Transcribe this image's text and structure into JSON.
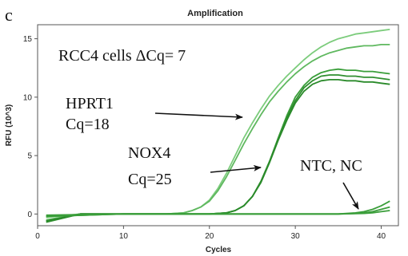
{
  "panel_label": "c",
  "chart_data": {
    "type": "line",
    "title": "Amplification",
    "xlabel": "Cycles",
    "ylabel": "RFU (10^3)",
    "xlim": [
      0,
      42
    ],
    "ylim": [
      -1,
      16.2
    ],
    "xticks": [
      0,
      10,
      20,
      30,
      40
    ],
    "yticks": [
      0,
      5,
      10,
      15
    ],
    "grid": false,
    "legend": "none",
    "series_color": "#3a9e3a",
    "series_colors": [
      "#7ccc7c",
      "#5fb85f",
      "#3a9e3a",
      "#2f8f2f",
      "#2a8a2a"
    ],
    "series": [
      {
        "group": "HPRT1",
        "x": [
          1,
          5,
          10,
          15,
          17,
          18,
          19,
          20,
          21,
          22,
          23,
          24,
          25,
          26,
          27,
          28,
          29,
          30,
          31,
          32,
          33,
          34,
          35,
          36,
          37,
          38,
          39,
          40,
          41
        ],
        "y": [
          -0.3,
          0.0,
          0.0,
          0.0,
          0.1,
          0.3,
          0.6,
          1.2,
          2.2,
          3.5,
          5.0,
          6.5,
          7.8,
          9.0,
          10.1,
          11.0,
          11.8,
          12.5,
          13.2,
          13.8,
          14.3,
          14.7,
          15.0,
          15.2,
          15.4,
          15.5,
          15.6,
          15.7,
          15.8
        ]
      },
      {
        "group": "HPRT1",
        "x": [
          1,
          5,
          10,
          15,
          17,
          18,
          19,
          20,
          21,
          22,
          23,
          24,
          25,
          26,
          27,
          28,
          29,
          30,
          31,
          32,
          33,
          34,
          35,
          36,
          37,
          38,
          39,
          40,
          41
        ],
        "y": [
          -0.5,
          0.0,
          0.0,
          0.0,
          0.1,
          0.3,
          0.6,
          1.1,
          2.0,
          3.2,
          4.6,
          6.0,
          7.3,
          8.5,
          9.6,
          10.5,
          11.3,
          12.0,
          12.6,
          13.1,
          13.5,
          13.8,
          14.0,
          14.2,
          14.3,
          14.4,
          14.4,
          14.5,
          14.5
        ]
      },
      {
        "group": "NOX4",
        "x": [
          1,
          5,
          10,
          15,
          20,
          22,
          23,
          24,
          25,
          26,
          27,
          28,
          29,
          30,
          31,
          32,
          33,
          34,
          35,
          36,
          37,
          38,
          39,
          40,
          41
        ],
        "y": [
          -0.6,
          0.0,
          0.0,
          0.0,
          0.0,
          0.1,
          0.3,
          0.7,
          1.5,
          2.8,
          4.5,
          6.5,
          8.4,
          10.0,
          11.0,
          11.7,
          12.1,
          12.3,
          12.4,
          12.3,
          12.3,
          12.2,
          12.2,
          12.1,
          12.0
        ]
      },
      {
        "group": "NOX4",
        "x": [
          1,
          5,
          10,
          15,
          20,
          22,
          23,
          24,
          25,
          26,
          27,
          28,
          29,
          30,
          31,
          32,
          33,
          34,
          35,
          36,
          37,
          38,
          39,
          40,
          41
        ],
        "y": [
          -0.7,
          0.0,
          0.0,
          0.0,
          0.0,
          0.1,
          0.3,
          0.7,
          1.5,
          2.8,
          4.5,
          6.4,
          8.2,
          9.7,
          10.8,
          11.4,
          11.8,
          11.9,
          11.9,
          11.8,
          11.8,
          11.7,
          11.7,
          11.6,
          11.5
        ]
      },
      {
        "group": "NOX4",
        "x": [
          1,
          5,
          10,
          15,
          20,
          22,
          23,
          24,
          25,
          26,
          27,
          28,
          29,
          30,
          31,
          32,
          33,
          34,
          35,
          36,
          37,
          38,
          39,
          40,
          41
        ],
        "y": [
          -0.6,
          0.0,
          0.0,
          0.0,
          0.0,
          0.1,
          0.3,
          0.7,
          1.5,
          2.7,
          4.4,
          6.3,
          8.0,
          9.5,
          10.5,
          11.1,
          11.4,
          11.5,
          11.5,
          11.4,
          11.4,
          11.3,
          11.3,
          11.2,
          11.1
        ]
      },
      {
        "group": "NTC, NC",
        "x": [
          1,
          10,
          20,
          30,
          35,
          37,
          38,
          39,
          40,
          41
        ],
        "y": [
          -0.2,
          0.0,
          0.0,
          0.0,
          0.0,
          0.1,
          0.2,
          0.4,
          0.7,
          1.1
        ]
      },
      {
        "group": "NTC, NC",
        "x": [
          1,
          10,
          20,
          30,
          35,
          37,
          38,
          39,
          40,
          41
        ],
        "y": [
          -0.2,
          0.0,
          0.0,
          0.0,
          0.0,
          0.05,
          0.1,
          0.2,
          0.4,
          0.6
        ]
      },
      {
        "group": "NTC, NC",
        "x": [
          1,
          10,
          20,
          30,
          35,
          38,
          39,
          40,
          41
        ],
        "y": [
          -0.1,
          0.0,
          0.0,
          0.0,
          0.0,
          0.05,
          0.1,
          0.2,
          0.3
        ]
      }
    ],
    "annotations": [
      {
        "text": "RCC4 cells  ΔCq= 7"
      },
      {
        "text": "HPRT1"
      },
      {
        "text": "Cq=18"
      },
      {
        "text": "NOX4"
      },
      {
        "text": "Cq=25"
      },
      {
        "text": "NTC, NC"
      }
    ]
  }
}
